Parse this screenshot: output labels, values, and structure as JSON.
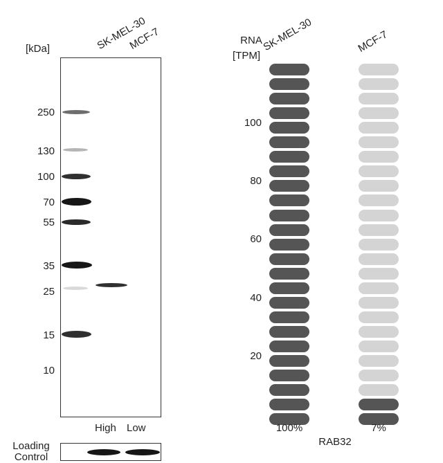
{
  "western_blot": {
    "unit_label": "[kDa]",
    "lanes": [
      "SK-MEL-30",
      "MCF-7"
    ],
    "markers": [
      "250",
      "130",
      "100",
      "70",
      "55",
      "35",
      "25",
      "15",
      "10"
    ],
    "lane_levels": [
      "High",
      "Low"
    ],
    "loading_control_label": "Loading Control"
  },
  "rna_panel": {
    "axis_label_line1": "RNA",
    "axis_label_line2": "[TPM]",
    "cell_lines": [
      "SK-MEL-30",
      "MCF-7"
    ],
    "ticks": [
      "100",
      "80",
      "60",
      "40",
      "20"
    ],
    "percentages": [
      "100%",
      "7%"
    ],
    "gene": "RAB32",
    "total_segments": 25,
    "filled_segments": [
      25,
      2
    ],
    "colors": {
      "filled": "#555555",
      "empty": "#d4d4d4"
    }
  }
}
